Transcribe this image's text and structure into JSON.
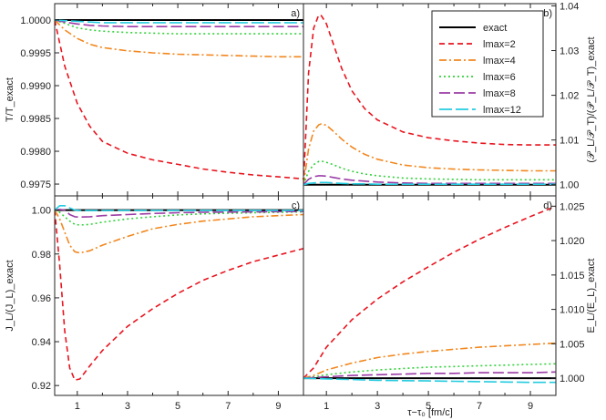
{
  "figure": {
    "x_axis_label": "τ−τ₀ [fm/c]",
    "legend_entries": [
      "exact",
      "lmax=2",
      "lmax=4",
      "lmax=6",
      "lmax=8",
      "lmax=12"
    ]
  },
  "series_styles": [
    {
      "name": "exact",
      "color": "#000000",
      "dash": ""
    },
    {
      "name": "lmax=2",
      "color": "#e8141e",
      "dash": "6,4"
    },
    {
      "name": "lmax=4",
      "color": "#f2871e",
      "dash": "8,3,2,3"
    },
    {
      "name": "lmax=6",
      "color": "#31d13a",
      "dash": "2,3"
    },
    {
      "name": "lmax=8",
      "color": "#9b3ca6",
      "dash": "12,4"
    },
    {
      "name": "lmax=12",
      "color": "#25cce0",
      "dash": "14,4"
    }
  ],
  "chart_data": [
    {
      "type": "line",
      "panel": "a)",
      "ylabel": "T/T_exact",
      "xlim": [
        0.1,
        10
      ],
      "ylim": [
        0.99732,
        1.00025
      ],
      "yticks": [
        "0.9975",
        "0.9980",
        "0.9985",
        "0.9990",
        "0.9995",
        "1.0000"
      ],
      "x": [
        0.1,
        0.5,
        1,
        1.5,
        2,
        3,
        4,
        5,
        6,
        7,
        8,
        9,
        10
      ],
      "series": [
        {
          "name": "exact",
          "values": [
            1,
            1,
            1,
            1,
            1,
            1,
            1,
            1,
            1,
            1,
            1,
            1,
            1
          ]
        },
        {
          "name": "lmax=2",
          "values": [
            1.0,
            0.9993,
            0.99873,
            0.99838,
            0.99815,
            0.99797,
            0.99787,
            0.9978,
            0.99773,
            0.99768,
            0.99764,
            0.99761,
            0.99758
          ]
        },
        {
          "name": "lmax=4",
          "values": [
            1.0,
            0.99985,
            0.99972,
            0.99963,
            0.99958,
            0.99953,
            0.9995,
            0.99948,
            0.99947,
            0.99946,
            0.99945,
            0.99944,
            0.99944
          ]
        },
        {
          "name": "lmax=6",
          "values": [
            1.0,
            0.99995,
            0.99988,
            0.99985,
            0.99983,
            0.99981,
            0.9998,
            0.99979,
            0.99979,
            0.99979,
            0.99979,
            0.99979,
            0.99979
          ]
        },
        {
          "name": "lmax=8",
          "values": [
            1.0,
            0.99997,
            0.99994,
            0.99992,
            0.99991,
            0.9999,
            0.9999,
            0.9999,
            0.9999,
            0.9999,
            0.9999,
            0.9999,
            0.9999
          ]
        },
        {
          "name": "lmax=12",
          "values": [
            1.0,
            0.99999,
            0.99998,
            0.99997,
            0.99996,
            0.99996,
            0.99996,
            0.99996,
            0.99996,
            0.99996,
            0.99996,
            0.99996,
            0.99996
          ]
        }
      ]
    },
    {
      "type": "line",
      "panel": "b)",
      "ylabel": "(𝒫_L/𝒫_T)/(𝒫_L/𝒫_T)_exact",
      "xlim": [
        0.1,
        10
      ],
      "ylim": [
        0.9975,
        1.0405
      ],
      "yticks": [
        "1.00",
        "1.01",
        "1.02",
        "1.03",
        "1.04"
      ],
      "x": [
        0.1,
        0.3,
        0.5,
        0.7,
        0.8,
        1,
        1.3,
        1.6,
        2,
        2.5,
        3,
        4,
        5,
        6,
        7,
        8,
        9,
        10
      ],
      "series": [
        {
          "name": "exact",
          "values": [
            1,
            1,
            1,
            1,
            1,
            1,
            1,
            1,
            1,
            1,
            1,
            1,
            1,
            1,
            1,
            1,
            1,
            1
          ]
        },
        {
          "name": "lmax=2",
          "values": [
            1.0,
            1.025,
            1.035,
            1.038,
            1.0378,
            1.036,
            1.031,
            1.026,
            1.021,
            1.017,
            1.0145,
            1.0118,
            1.0105,
            1.0098,
            1.0093,
            1.009,
            1.0089,
            1.0089
          ]
        },
        {
          "name": "lmax=4",
          "values": [
            1.0,
            1.008,
            1.012,
            1.0134,
            1.0136,
            1.0133,
            1.0118,
            1.0102,
            1.0084,
            1.0068,
            1.0057,
            1.0044,
            1.0038,
            1.0035,
            1.0033,
            1.0032,
            1.0031,
            1.0031
          ]
        },
        {
          "name": "lmax=6",
          "values": [
            1.0,
            1.003,
            1.0045,
            1.0052,
            1.0053,
            1.005,
            1.0044,
            1.0037,
            1.003,
            1.0024,
            1.002,
            1.0015,
            1.0013,
            1.0012,
            1.0011,
            1.0011,
            1.0011,
            1.0011
          ]
        },
        {
          "name": "lmax=8",
          "values": [
            1.0,
            1.0012,
            1.0018,
            1.002,
            1.002,
            1.0019,
            1.0016,
            1.0013,
            1.001,
            1.0008,
            1.0006,
            1.0004,
            1.0003,
            1.0003,
            1.0003,
            1.0003,
            1.0003,
            1.0003
          ]
        },
        {
          "name": "lmax=12",
          "values": [
            1.0,
            1.0003,
            1.0004,
            1.0005,
            1.0005,
            1.0005,
            1.0004,
            1.0003,
            1.0002,
            1.0002,
            1.0001,
            1.0001,
            1.0001,
            1.0001,
            1.0001,
            1.0001,
            1.0001,
            1.0001
          ]
        }
      ]
    },
    {
      "type": "line",
      "panel": "c)",
      "ylabel": "J_L/(J_L)_exact",
      "xlim": [
        0.1,
        10
      ],
      "ylim": [
        0.9155,
        1.0065
      ],
      "yticks": [
        "0.92",
        "0.94",
        "0.96",
        "0.98",
        "1.00"
      ],
      "x": [
        0.1,
        0.3,
        0.5,
        0.7,
        0.9,
        1.1,
        1.5,
        2,
        3,
        4,
        5,
        6,
        7,
        8,
        9,
        10
      ],
      "series": [
        {
          "name": "exact",
          "values": [
            1,
            1,
            1,
            1,
            1,
            1,
            1,
            1,
            1,
            1,
            1,
            1,
            1,
            1,
            1,
            1
          ]
        },
        {
          "name": "lmax=2",
          "values": [
            1.0,
            0.975,
            0.945,
            0.928,
            0.9225,
            0.923,
            0.929,
            0.936,
            0.947,
            0.955,
            0.962,
            0.968,
            0.9725,
            0.9765,
            0.9795,
            0.9825
          ]
        },
        {
          "name": "lmax=4",
          "values": [
            1.0,
            0.996,
            0.99,
            0.984,
            0.981,
            0.9805,
            0.9815,
            0.984,
            0.988,
            0.9915,
            0.9935,
            0.995,
            0.996,
            0.997,
            0.9975,
            0.998
          ]
        },
        {
          "name": "lmax=6",
          "values": [
            1.0,
            0.999,
            0.997,
            0.995,
            0.9935,
            0.9932,
            0.9935,
            0.9945,
            0.996,
            0.997,
            0.9978,
            0.9983,
            0.9986,
            0.9988,
            0.999,
            0.9992
          ]
        },
        {
          "name": "lmax=8",
          "values": [
            1.0,
            1.0003,
            1.0,
            0.998,
            0.997,
            0.9968,
            0.997,
            0.9975,
            0.998,
            0.9985,
            0.9988,
            0.999,
            0.9991,
            0.9992,
            0.9993,
            0.9994
          ]
        },
        {
          "name": "lmax=12",
          "values": [
            1.0,
            1.002,
            1.002,
            1.001,
            1.0,
            0.9998,
            0.9998,
            0.9998,
            0.9999,
            0.9999,
            0.9999,
            0.9999,
            0.9999,
            0.9999,
            0.9999,
            0.9999
          ]
        }
      ]
    },
    {
      "type": "line",
      "panel": "d)",
      "ylabel": "E_L/(E_L)_exact",
      "xlim": [
        0.1,
        10
      ],
      "ylim": [
        0.9975,
        1.0265
      ],
      "yticks": [
        "1.000",
        "1.005",
        "1.010",
        "1.015",
        "1.020",
        "1.025"
      ],
      "x": [
        0.1,
        0.5,
        1,
        2,
        3,
        4,
        5,
        6,
        7,
        8,
        9,
        10
      ],
      "series": [
        {
          "name": "exact",
          "values": [
            1,
            1,
            1,
            1,
            1,
            1,
            1,
            1,
            1,
            1,
            1,
            1
          ]
        },
        {
          "name": "lmax=2",
          "values": [
            1.0,
            1.0015,
            1.0045,
            1.0085,
            1.0115,
            1.014,
            1.0162,
            1.0183,
            1.0202,
            1.0219,
            1.0235,
            1.025
          ]
        },
        {
          "name": "lmax=4",
          "values": [
            1.0,
            1.0004,
            1.0012,
            1.0022,
            1.003,
            1.0035,
            1.0039,
            1.0042,
            1.0045,
            1.0047,
            1.0049,
            1.0051
          ]
        },
        {
          "name": "lmax=6",
          "values": [
            1.0,
            1.0002,
            1.0005,
            1.0009,
            1.0012,
            1.0014,
            1.0016,
            1.0017,
            1.0018,
            1.0019,
            1.002,
            1.0021
          ]
        },
        {
          "name": "lmax=8",
          "values": [
            1.0,
            1.0001,
            1.0002,
            1.0004,
            1.0005,
            1.0006,
            1.0007,
            1.0007,
            1.0008,
            1.0008,
            1.0008,
            1.0009
          ]
        },
        {
          "name": "lmax=12",
          "values": [
            1.0,
            0.99995,
            0.9999,
            0.9998,
            0.9997,
            0.99965,
            0.9996,
            0.99955,
            0.9995,
            0.99945,
            0.9994,
            0.9994
          ]
        }
      ]
    }
  ]
}
